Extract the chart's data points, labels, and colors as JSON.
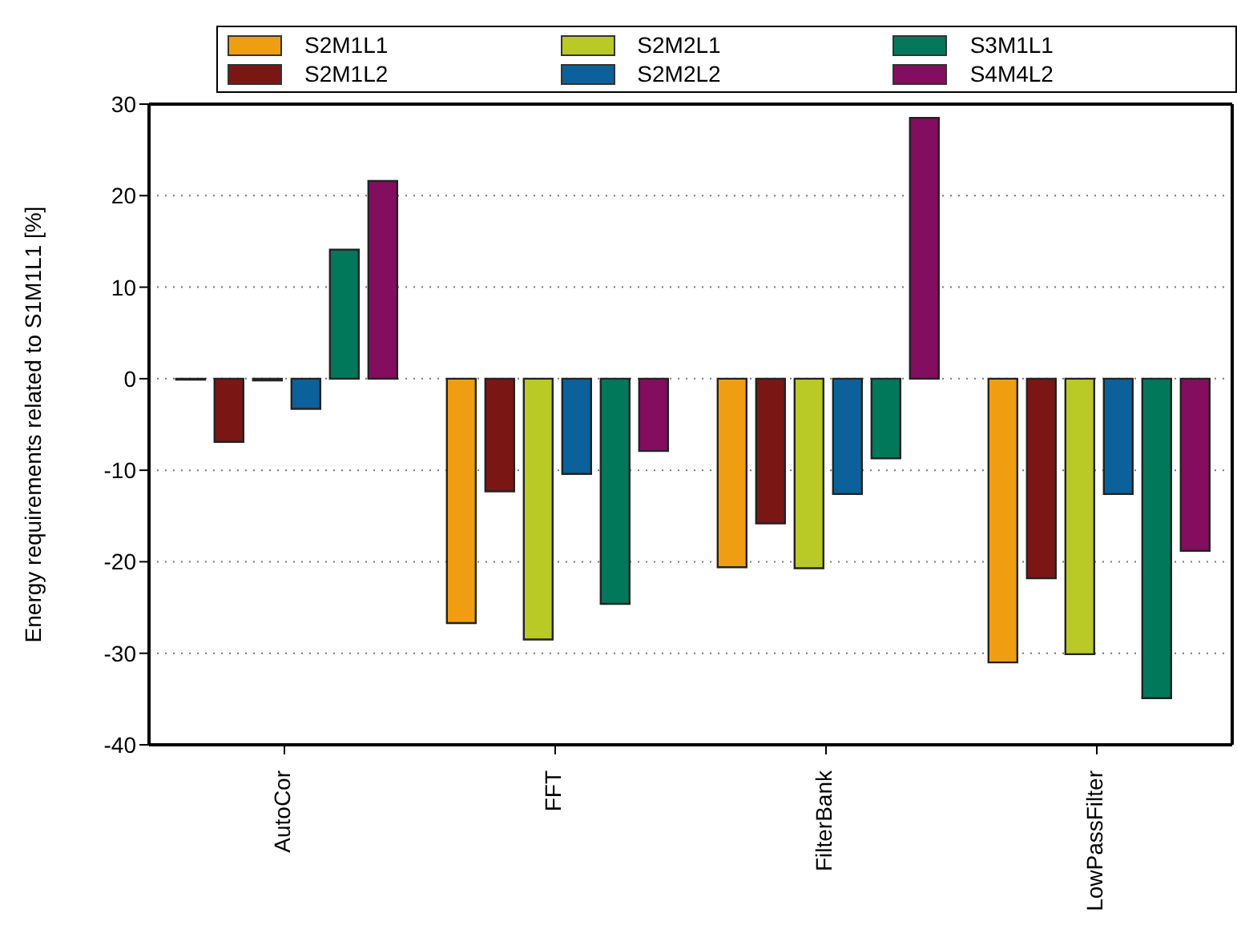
{
  "chart_data": {
    "type": "bar",
    "ylabel": "Energy requirements related to S1M1L1 [%]",
    "categories": [
      "AutoCor",
      "FFT",
      "FilterBank",
      "LowPassFilter"
    ],
    "series": [
      {
        "name": "S2M1L1",
        "color": "#f09e11",
        "values": [
          -0.1,
          -26.7,
          -20.6,
          -31.0
        ]
      },
      {
        "name": "S2M1L2",
        "color": "#7a1715",
        "values": [
          -6.9,
          -12.3,
          -15.8,
          -21.8
        ]
      },
      {
        "name": "S2M2L1",
        "color": "#b9c926",
        "values": [
          -0.2,
          -28.5,
          -20.7,
          -30.1
        ]
      },
      {
        "name": "S2M2L2",
        "color": "#0c619b",
        "values": [
          -3.3,
          -10.4,
          -12.6,
          -12.6
        ]
      },
      {
        "name": "S3M1L1",
        "color": "#02785a",
        "values": [
          14.1,
          -24.6,
          -8.7,
          -34.9
        ]
      },
      {
        "name": "S4M4L2",
        "color": "#830d5e",
        "values": [
          21.6,
          -7.9,
          28.5,
          -18.8
        ]
      }
    ],
    "ylim": [
      -40,
      30
    ],
    "yticks": [
      -40,
      -30,
      -20,
      -10,
      0,
      10,
      20,
      30
    ],
    "grid": "y",
    "legend": "top"
  }
}
